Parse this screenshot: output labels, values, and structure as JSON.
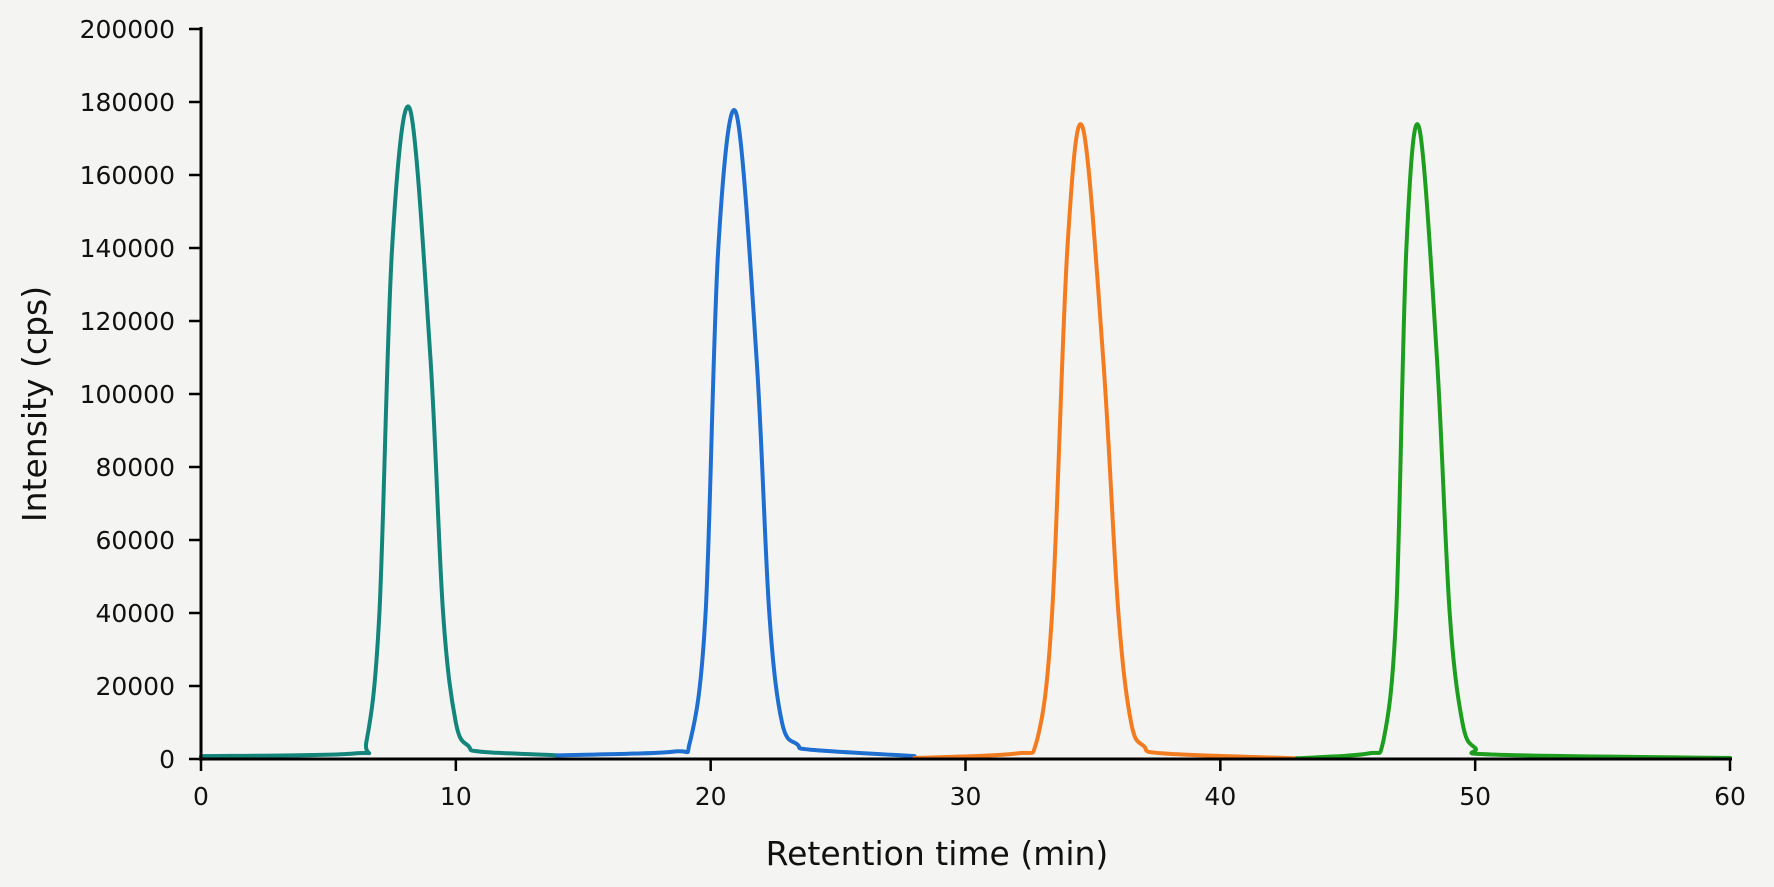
{
  "chart_data": {
    "type": "line",
    "title": "",
    "xlabel": "Retention time (min)",
    "ylabel": "Intensity (cps)",
    "xlim": [
      0,
      60
    ],
    "ylim": [
      0,
      200000
    ],
    "x_ticks": [
      "0",
      "10",
      "20",
      "30",
      "40",
      "50",
      "60"
    ],
    "y_ticks": [
      "0",
      "20000",
      "40000",
      "60000",
      "80000",
      "100000",
      "120000",
      "140000",
      "160000",
      "180000",
      "200000"
    ],
    "grid": false,
    "legend": "none",
    "series": [
      {
        "color": "#13857a",
        "x": [
          0,
          6,
          6.5,
          7,
          7.5,
          8.2,
          9,
          9.5,
          10,
          10.5,
          11,
          14
        ],
        "y": [
          800,
          1500,
          5000,
          40000,
          140000,
          178000,
          110000,
          40000,
          10000,
          3500,
          2000,
          1000
        ]
      },
      {
        "color": "#1f6fd1",
        "x": [
          14,
          18.5,
          19.2,
          19.8,
          20.3,
          21,
          21.8,
          22.3,
          22.8,
          23.4,
          24,
          28
        ],
        "y": [
          1000,
          2000,
          5000,
          40000,
          140000,
          177000,
          110000,
          40000,
          10000,
          4000,
          2500,
          800
        ]
      },
      {
        "color": "#f47c20",
        "x": [
          28,
          32,
          32.8,
          33.4,
          34,
          34.6,
          35.4,
          36,
          36.5,
          37,
          37.8,
          43
        ],
        "y": [
          300,
          1500,
          5000,
          40000,
          140000,
          173000,
          110000,
          40000,
          10000,
          3500,
          1500,
          200
        ]
      },
      {
        "color": "#1e9e1e",
        "x": [
          43,
          45.8,
          46.4,
          46.9,
          47.3,
          47.8,
          48.5,
          49,
          49.5,
          50,
          50.8,
          60
        ],
        "y": [
          200,
          1500,
          5000,
          40000,
          140000,
          173000,
          110000,
          40000,
          10000,
          3000,
          1200,
          300
        ]
      }
    ]
  }
}
